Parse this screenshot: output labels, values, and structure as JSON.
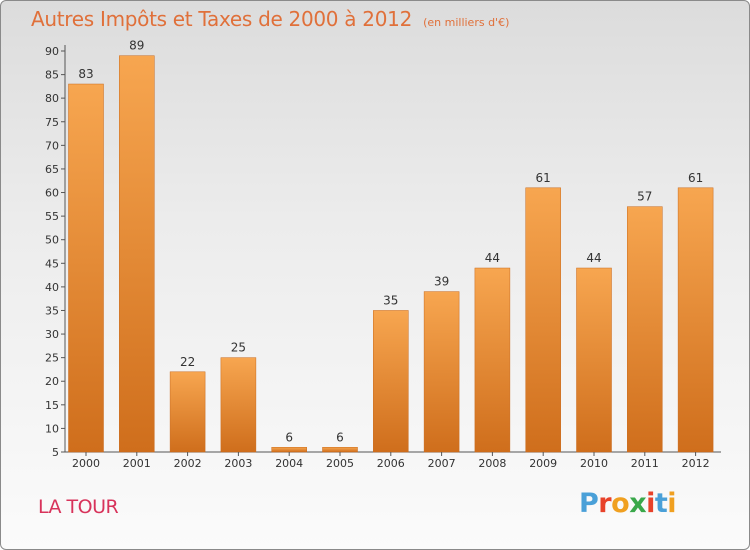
{
  "header": {
    "title": "Autres Impôts et Taxes de 2000 à 2012",
    "subtitle": "(en milliers d'€)"
  },
  "footer": {
    "commune": "LA TOUR",
    "logo_text": "Proxiti",
    "logo_colors": [
      "#4aa0d8",
      "#e8422a",
      "#f0a020",
      "#3aa84a",
      "#e8422a",
      "#4aa0d8",
      "#f0a020"
    ]
  },
  "colors": {
    "bar_light": "#f7a650",
    "bar_dark": "#cf6e1c",
    "title": "#e0703a",
    "commune": "#d8335b"
  },
  "chart_data": {
    "type": "bar",
    "categories": [
      "2000",
      "2001",
      "2002",
      "2003",
      "2004",
      "2005",
      "2006",
      "2007",
      "2008",
      "2009",
      "2010",
      "2011",
      "2012"
    ],
    "values": [
      83,
      89,
      22,
      25,
      6,
      6,
      35,
      39,
      44,
      61,
      44,
      57,
      61
    ],
    "yticks": [
      "5",
      "10",
      "15",
      "20",
      "25",
      "30",
      "35",
      "40",
      "45",
      "50",
      "55",
      "60",
      "65",
      "70",
      "75",
      "80",
      "85",
      "90"
    ],
    "ylim": [
      5,
      90
    ],
    "grid": false,
    "legend": "none"
  }
}
